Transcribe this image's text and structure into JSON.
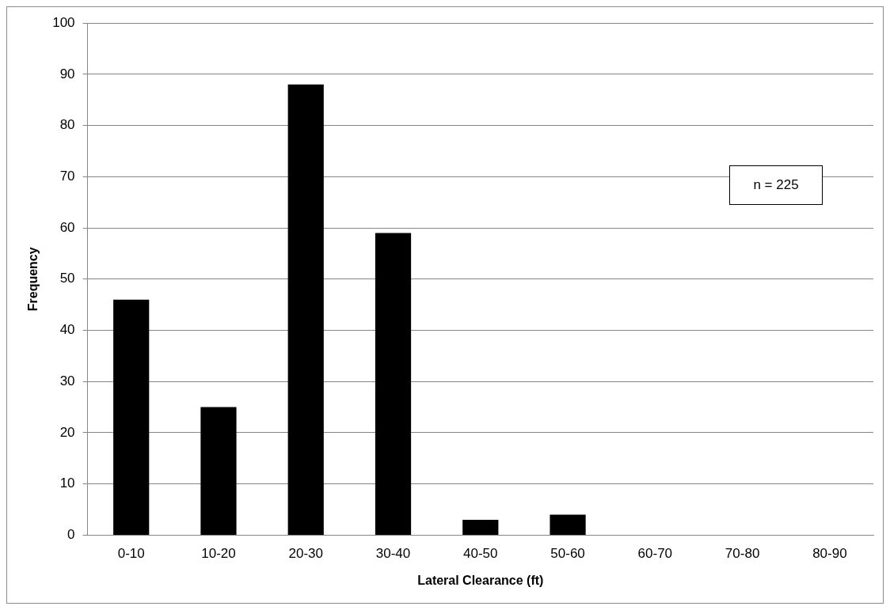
{
  "chart_data": {
    "type": "bar",
    "xlabel": "Lateral Clearance (ft)",
    "ylabel": "Frequency",
    "categories": [
      "0-10",
      "10-20",
      "20-30",
      "30-40",
      "40-50",
      "50-60",
      "60-70",
      "70-80",
      "80-90"
    ],
    "values": [
      46,
      25,
      88,
      59,
      3,
      4,
      0,
      0,
      0
    ],
    "color": "#000000",
    "ylim": [
      0,
      100
    ],
    "yticks": [
      0,
      10,
      20,
      30,
      40,
      50,
      60,
      70,
      80,
      90,
      100
    ],
    "grid": "y",
    "annotations": [
      "n = 225"
    ]
  }
}
